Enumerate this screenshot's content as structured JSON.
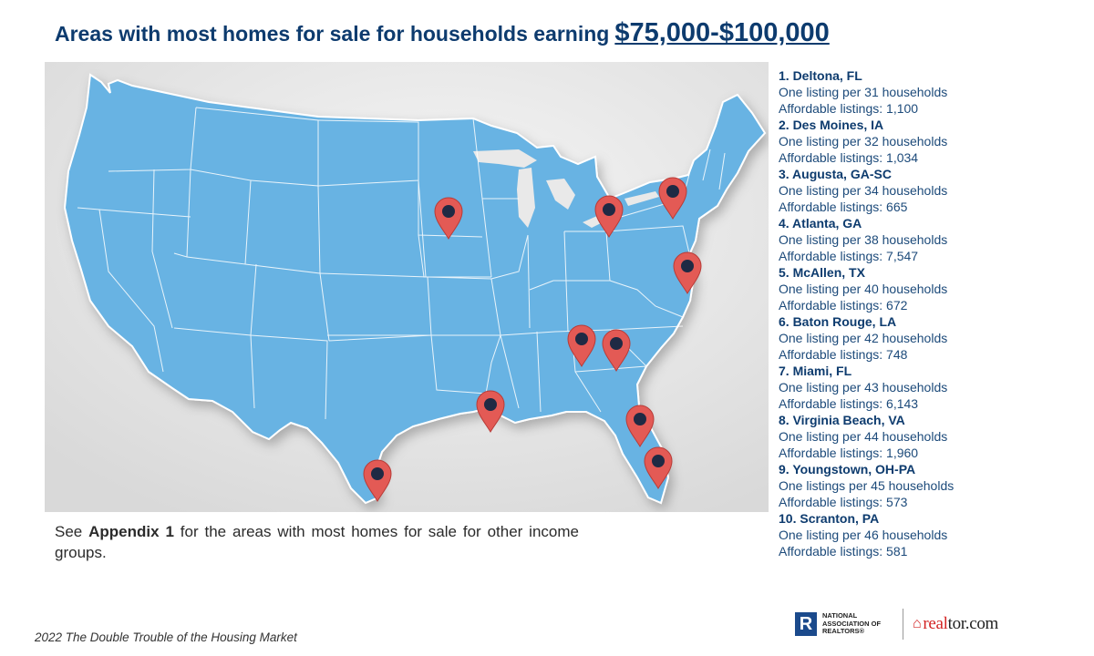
{
  "title": {
    "text": "Areas with most homes for sale for households earning",
    "highlight": "$75,000-$100,000"
  },
  "map": {
    "land_color": "#67b3e3",
    "border_color": "#ffffff",
    "background_color": "#e9e9e9",
    "marker_color": "#e35a55",
    "marker_dot_color": "#1f2a44",
    "marker_icon": "map-pin-icon"
  },
  "rankings": [
    {
      "name": "1. Deltona, FL",
      "ratio": "One listing per 31 households",
      "listings": "Affordable listings: 1,100"
    },
    {
      "name": "2. Des Moines, IA",
      "ratio": "One listing per 32 households",
      "listings": "Affordable listings: 1,034"
    },
    {
      "name": "3. Augusta, GA-SC",
      "ratio": "One listing per 34 households",
      "listings": "Affordable listings: 665"
    },
    {
      "name": "4. Atlanta, GA",
      "ratio": "One listing per 38 households",
      "listings": "Affordable listings: 7,547"
    },
    {
      "name": "5. McAllen, TX",
      "ratio": "One listing per 40 households",
      "listings": "Affordable listings: 672"
    },
    {
      "name": "6. Baton Rouge, LA",
      "ratio": "One listing per 42 households",
      "listings": "Affordable listings: 748"
    },
    {
      "name": "7. Miami, FL",
      "ratio": "One listing per 43 households",
      "listings": "Affordable listings: 6,143"
    },
    {
      "name": "8. Virginia Beach, VA",
      "ratio": "One listing per 44 households",
      "listings": "Affordable listings: 1,960"
    },
    {
      "name": "9. Youngstown, OH-PA",
      "ratio": "One listings per 45 households",
      "listings": "Affordable listings: 573"
    },
    {
      "name": "10. Scranton, PA",
      "ratio": "One listing per 46 households",
      "listings": "Affordable listings: 581"
    }
  ],
  "note": {
    "pre": "See",
    "bold": "Appendix 1",
    "post": "for the areas with most homes for sale for other income groups."
  },
  "footer": "2022 The Double Trouble of the Housing Market",
  "logos": {
    "nar_mark": "R",
    "nar_line1": "NATIONAL",
    "nar_line2": "ASSOCIATION OF",
    "nar_line3": "REALTORS®",
    "realtor_part1": "real",
    "realtor_part2": "tor.com"
  }
}
